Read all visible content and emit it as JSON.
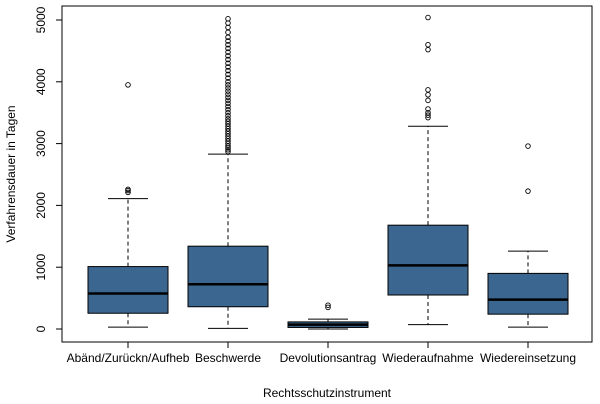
{
  "chart_data": {
    "type": "boxplot",
    "title": "",
    "xlabel": "Rechtsschutzinstrument",
    "ylabel": "Verfahrensdauer in Tagen",
    "ylim": [
      0,
      5000
    ],
    "yticks": [
      0,
      1000,
      2000,
      3000,
      4000,
      5000
    ],
    "grid": false,
    "box_color": "#3b6690",
    "median_color": "#000000",
    "categories": [
      "Abänd/Zurückn/Aufheb",
      "Beschwerde",
      "Devolutionsantrag",
      "Wiederaufnahme",
      "Wiedereinsetzung"
    ],
    "boxes": [
      {
        "category": "Abänd/Zurückn/Aufheb",
        "whisker_low": 30,
        "q1": 255,
        "median": 575,
        "q3": 1010,
        "whisker_high": 2110,
        "outliers": [
          2210,
          2240,
          2260,
          3950
        ]
      },
      {
        "category": "Beschwerde",
        "whisker_low": 10,
        "q1": 360,
        "median": 725,
        "q3": 1340,
        "whisker_high": 2830,
        "outliers": [
          2870,
          2900,
          2930,
          2960,
          3000,
          3040,
          3080,
          3120,
          3160,
          3200,
          3240,
          3280,
          3320,
          3360,
          3400,
          3450,
          3500,
          3550,
          3600,
          3650,
          3700,
          3750,
          3800,
          3850,
          3900,
          3950,
          4000,
          4060,
          4120,
          4180,
          4240,
          4300,
          4360,
          4420,
          4480,
          4540,
          4600,
          4660,
          4720,
          4800,
          4880,
          4950,
          5020
        ]
      },
      {
        "category": "Devolutionsantrag",
        "whisker_low": 0,
        "q1": 25,
        "median": 70,
        "q3": 115,
        "whisker_high": 160,
        "outliers": [
          350,
          385
        ]
      },
      {
        "category": "Wiederaufnahme",
        "whisker_low": 70,
        "q1": 550,
        "median": 1030,
        "q3": 1680,
        "whisker_high": 3280,
        "outliers": [
          3420,
          3460,
          3500,
          3560,
          3700,
          3790,
          3870,
          4520,
          4600,
          5040
        ]
      },
      {
        "category": "Wiedereinsetzung",
        "whisker_low": 30,
        "q1": 240,
        "median": 475,
        "q3": 900,
        "whisker_high": 1260,
        "outliers": [
          2230,
          2960
        ]
      }
    ]
  }
}
